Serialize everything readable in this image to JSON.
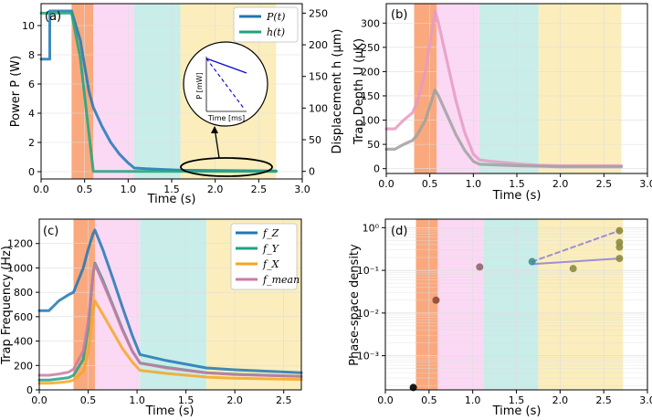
{
  "colors": {
    "stage1": "#f9a070",
    "stage2": "#fbd9f4",
    "stage3": "#c9ede9",
    "stage4": "#fbeebc",
    "power": "#1f77b4",
    "disp": "#1ea37e",
    "trap_pink": "#e59ac4",
    "trap_gray": "#a0a0a0",
    "fz": "#1f77b4",
    "fy": "#1ea37e",
    "fx": "#f5a623",
    "fmean": "#cc79a7",
    "psd_line": "#8c7fd6"
  },
  "chart_data": [
    {
      "panel": "(a)",
      "type": "line",
      "xlabel": "Time (s)",
      "ylabel_left": "Power P (W)",
      "ylabel_right": "Displacement h (μm)",
      "xlim": [
        0,
        3.0
      ],
      "ylim_left": [
        -0.5,
        11.5
      ],
      "ylim_right": [
        -12,
        265
      ],
      "xticks": [
        "0.0",
        "0.5",
        "1.0",
        "1.5",
        "2.0",
        "2.5",
        "3.0"
      ],
      "yticks_left": [
        "0",
        "2",
        "4",
        "6",
        "8",
        "10"
      ],
      "yticks_right": [
        "0",
        "50",
        "100",
        "150",
        "200",
        "250"
      ],
      "stages": [
        [
          0.35,
          0.6
        ],
        [
          0.6,
          1.07
        ],
        [
          1.07,
          1.6
        ],
        [
          1.6,
          2.7
        ]
      ],
      "legend": [
        "P(t)",
        "h(t)"
      ],
      "series": [
        {
          "name": "P(t)",
          "axis": "left",
          "x": [
            0,
            0.1,
            0.1,
            0.25,
            0.35,
            0.45,
            0.55,
            0.6,
            0.7,
            0.8,
            0.9,
            1.0,
            1.07,
            1.2,
            1.4,
            1.6,
            2.0,
            2.7
          ],
          "y": [
            7.7,
            7.7,
            11,
            11,
            11,
            9.0,
            5.5,
            4.4,
            3.1,
            2.0,
            1.2,
            0.6,
            0.25,
            0.2,
            0.15,
            0.1,
            0.08,
            0.05
          ]
        },
        {
          "name": "h(t)",
          "axis": "right",
          "x": [
            0,
            0.1,
            0.1,
            0.25,
            0.35,
            0.45,
            0.55,
            0.6,
            1.0,
            1.6,
            2.7
          ],
          "y": [
            250,
            250,
            250,
            250,
            250,
            180,
            60,
            0,
            0,
            0,
            0
          ]
        }
      ],
      "inset": {
        "ylabel": "P [mW]",
        "xlabel": "Time [ms]"
      }
    },
    {
      "panel": "(b)",
      "type": "line",
      "xlabel": "Time (s)",
      "ylabel": "Trap Depth U (μK)",
      "xlim": [
        0,
        3.0
      ],
      "ylim": [
        -10,
        340
      ],
      "xticks": [
        "0.0",
        "0.5",
        "1.0",
        "1.5",
        "2.0",
        "2.5",
        "3.0"
      ],
      "yticks": [
        "0",
        "50",
        "100",
        "150",
        "200",
        "250",
        "300"
      ],
      "stages": [
        [
          0.32,
          0.58
        ],
        [
          0.58,
          1.07
        ],
        [
          1.07,
          1.75
        ],
        [
          1.75,
          2.7
        ]
      ],
      "series": [
        {
          "name": "pink",
          "x": [
            0,
            0.1,
            0.2,
            0.3,
            0.35,
            0.45,
            0.52,
            0.56,
            0.6,
            0.7,
            0.8,
            0.9,
            1.0,
            1.07,
            1.2,
            1.5,
            1.75,
            2.0,
            2.7
          ],
          "y": [
            82,
            82,
            100,
            115,
            135,
            200,
            280,
            325,
            300,
            220,
            140,
            75,
            30,
            18,
            15,
            10,
            7,
            6,
            6
          ]
        },
        {
          "name": "gray",
          "x": [
            0,
            0.1,
            0.2,
            0.3,
            0.35,
            0.45,
            0.52,
            0.56,
            0.6,
            0.7,
            0.8,
            0.9,
            1.0,
            1.07,
            1.2,
            1.5,
            1.75,
            2.0,
            2.7
          ],
          "y": [
            40,
            40,
            50,
            58,
            68,
            100,
            140,
            162,
            150,
            110,
            70,
            38,
            15,
            9,
            8,
            6,
            5,
            4,
            4
          ]
        }
      ]
    },
    {
      "panel": "(c)",
      "type": "line",
      "xlabel": "Time (s)",
      "ylabel": "Trap Frequency (Hz)",
      "xlim": [
        0,
        2.68
      ],
      "ylim": [
        0,
        1400
      ],
      "xticks": [
        "0.0",
        "0.5",
        "1.0",
        "1.5",
        "2.0",
        "2.5"
      ],
      "yticks": [
        "0",
        "200",
        "400",
        "600",
        "800",
        "1000",
        "1200"
      ],
      "stages": [
        [
          0.35,
          0.57
        ],
        [
          0.57,
          1.03
        ],
        [
          1.03,
          1.71
        ],
        [
          1.71,
          2.68
        ]
      ],
      "legend": [
        "f_Z",
        "f_Y",
        "f_X",
        "f_mean"
      ],
      "series": [
        {
          "name": "f_Z",
          "x": [
            0,
            0.1,
            0.2,
            0.3,
            0.35,
            0.45,
            0.5,
            0.55,
            0.57,
            0.65,
            0.75,
            0.85,
            0.95,
            1.03,
            1.3,
            1.71,
            2.0,
            2.68
          ],
          "y": [
            650,
            650,
            730,
            780,
            800,
            1000,
            1150,
            1280,
            1310,
            1150,
            920,
            680,
            450,
            290,
            240,
            180,
            165,
            140
          ]
        },
        {
          "name": "f_Y",
          "x": [
            0,
            0.1,
            0.2,
            0.3,
            0.35,
            0.45,
            0.5,
            0.55,
            0.57,
            0.65,
            0.75,
            0.85,
            0.95,
            1.03,
            1.3,
            1.71,
            2.0,
            2.68
          ],
          "y": [
            80,
            80,
            90,
            100,
            120,
            250,
            500,
            950,
            1040,
            900,
            700,
            500,
            320,
            220,
            185,
            140,
            128,
            110
          ]
        },
        {
          "name": "f_X",
          "x": [
            0,
            0.1,
            0.2,
            0.3,
            0.35,
            0.45,
            0.5,
            0.55,
            0.57,
            0.65,
            0.75,
            0.85,
            0.95,
            1.03,
            1.3,
            1.71,
            2.0,
            2.68
          ],
          "y": [
            55,
            55,
            60,
            68,
            80,
            150,
            300,
            650,
            730,
            620,
            480,
            340,
            230,
            160,
            135,
            105,
            95,
            85
          ]
        },
        {
          "name": "f_mean",
          "x": [
            0,
            0.1,
            0.2,
            0.3,
            0.35,
            0.45,
            0.5,
            0.55,
            0.57,
            0.65,
            0.75,
            0.85,
            0.95,
            1.03,
            1.3,
            1.71,
            2.0,
            2.68
          ],
          "y": [
            120,
            120,
            130,
            145,
            170,
            320,
            550,
            950,
            1030,
            880,
            690,
            490,
            320,
            220,
            180,
            140,
            125,
            110
          ]
        }
      ]
    },
    {
      "panel": "(d)",
      "type": "scatter",
      "xlabel": "Time (s)",
      "ylabel": "Phase-space density",
      "yscale": "log",
      "xlim": [
        0,
        3.0
      ],
      "ylim_log10": [
        -3.8,
        0.2
      ],
      "xticks": [
        "0.0",
        "0.5",
        "1.0",
        "1.5",
        "2.0",
        "2.5",
        "3.0"
      ],
      "yticks": [
        "10⁻³",
        "10⁻²",
        "10⁻¹",
        "10⁰"
      ],
      "stages": [
        [
          0.35,
          0.6
        ],
        [
          0.6,
          1.12
        ],
        [
          1.12,
          1.75
        ],
        [
          1.75,
          2.72
        ]
      ],
      "points": [
        {
          "x": 0.32,
          "y": 0.00018,
          "color": "#000000"
        },
        {
          "x": 0.58,
          "y": 0.02,
          "color": "#8b4a35"
        },
        {
          "x": 1.08,
          "y": 0.12,
          "color": "#8a6a6a"
        },
        {
          "x": 1.68,
          "y": 0.16,
          "color": "#3f8f8a"
        },
        {
          "x": 2.15,
          "y": 0.11,
          "color": "#8c8a40"
        },
        {
          "x": 2.68,
          "y": 0.85,
          "color": "#8c8a40"
        },
        {
          "x": 2.68,
          "y": 0.45,
          "color": "#8c8a40"
        },
        {
          "x": 2.68,
          "y": 0.35,
          "color": "#8c8a40"
        },
        {
          "x": 2.68,
          "y": 0.19,
          "color": "#8c8a40"
        }
      ],
      "fit_lines": [
        {
          "style": "dashed",
          "x": [
            1.68,
            2.68
          ],
          "y": [
            0.16,
            0.85
          ]
        },
        {
          "style": "solid",
          "x": [
            1.68,
            2.68
          ],
          "y": [
            0.14,
            0.19
          ]
        }
      ]
    }
  ]
}
